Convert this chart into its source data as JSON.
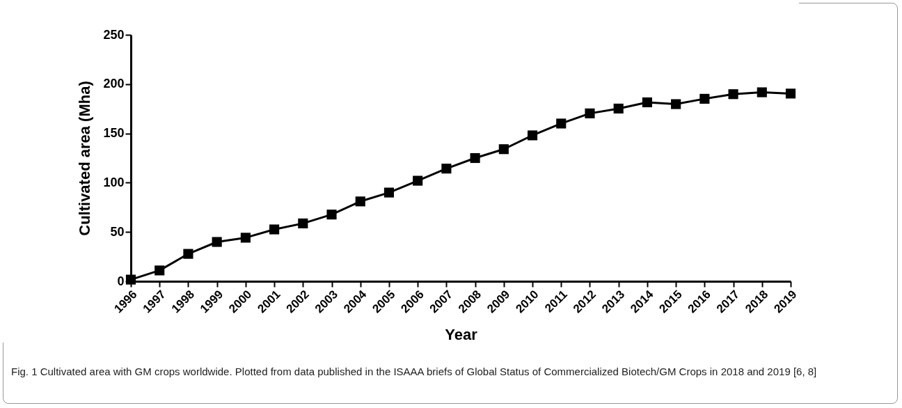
{
  "chart_data": {
    "type": "line",
    "xlabel": "Year",
    "ylabel": "Cultivated area (Mha)",
    "categories": [
      "1996",
      "1997",
      "1998",
      "1999",
      "2000",
      "2001",
      "2002",
      "2003",
      "2004",
      "2005",
      "2006",
      "2007",
      "2008",
      "2009",
      "2010",
      "2011",
      "2012",
      "2013",
      "2014",
      "2015",
      "2016",
      "2017",
      "2018",
      "2019"
    ],
    "series": [
      {
        "color": "#000000",
        "values": [
          1.7,
          11,
          27.8,
          39.9,
          44.2,
          52.6,
          58.7,
          67.7,
          81,
          90,
          102,
          114.3,
          125,
          134,
          148,
          160,
          170.3,
          175.2,
          181.5,
          179.7,
          185.1,
          189.8,
          191.7,
          190.4
        ]
      }
    ],
    "ylim": [
      0,
      250
    ],
    "yticks": [
      0,
      50,
      100,
      150,
      200,
      250
    ],
    "marker": "square",
    "line_style": "solid",
    "grid": false,
    "annotations": [
      "Fig. 1  Cultivated area with GM crops worldwide. Plotted from data published in the ISAAA briefs of Global Status of Commercialized Biotech/GM Crops in 2018 and 2019 [6, 8]"
    ]
  }
}
